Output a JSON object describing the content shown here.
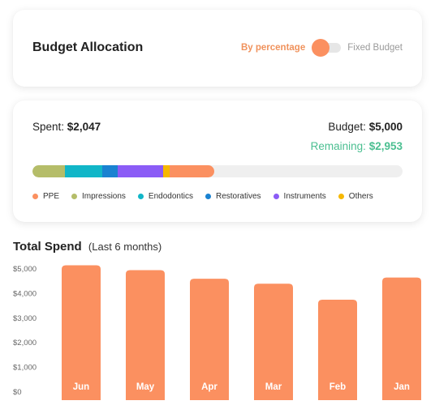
{
  "allocation": {
    "title": "Budget Allocation",
    "toggle_left_label": "By percentage",
    "toggle_right_label": "Fixed Budget"
  },
  "summary": {
    "spent_label": "Spent:",
    "spent_value": "$2,047",
    "budget_label": "Budget:",
    "budget_value": "$5,000",
    "remaining_label": "Remaining:",
    "remaining_value": "$2,953"
  },
  "categories": [
    {
      "name": "PPE",
      "color": "#fb9060",
      "share": 0.1209
    },
    {
      "name": "Impressions",
      "color": "#b5bd69",
      "share": 0.0879
    },
    {
      "name": "Endodontics",
      "color": "#11b6c8",
      "share": 0.1011
    },
    {
      "name": "Restoratives",
      "color": "#1a82d1",
      "share": 0.0417
    },
    {
      "name": "Instruments",
      "color": "#8b5cf6",
      "share": 0.1231
    },
    {
      "name": "Others",
      "color": "#f6b800",
      "share": 0.0165
    }
  ],
  "spend": {
    "title": "Total Spend",
    "subtitle": "(Last 6 months)"
  },
  "chart_data": {
    "type": "bar",
    "categories": [
      "Jun",
      "May",
      "Apr",
      "Mar",
      "Feb",
      "Jan"
    ],
    "values": [
      5150,
      4950,
      4600,
      4400,
      3750,
      4650
    ],
    "ylim": [
      0,
      5000
    ],
    "yticks": [
      0,
      1000,
      2000,
      3000,
      4000,
      5000
    ],
    "ytick_labels": [
      "$0",
      "$1,000",
      "$2,000",
      "$3,000",
      "$4,000",
      "$5,000"
    ],
    "bar_color": "#fb9060",
    "grid": false
  }
}
